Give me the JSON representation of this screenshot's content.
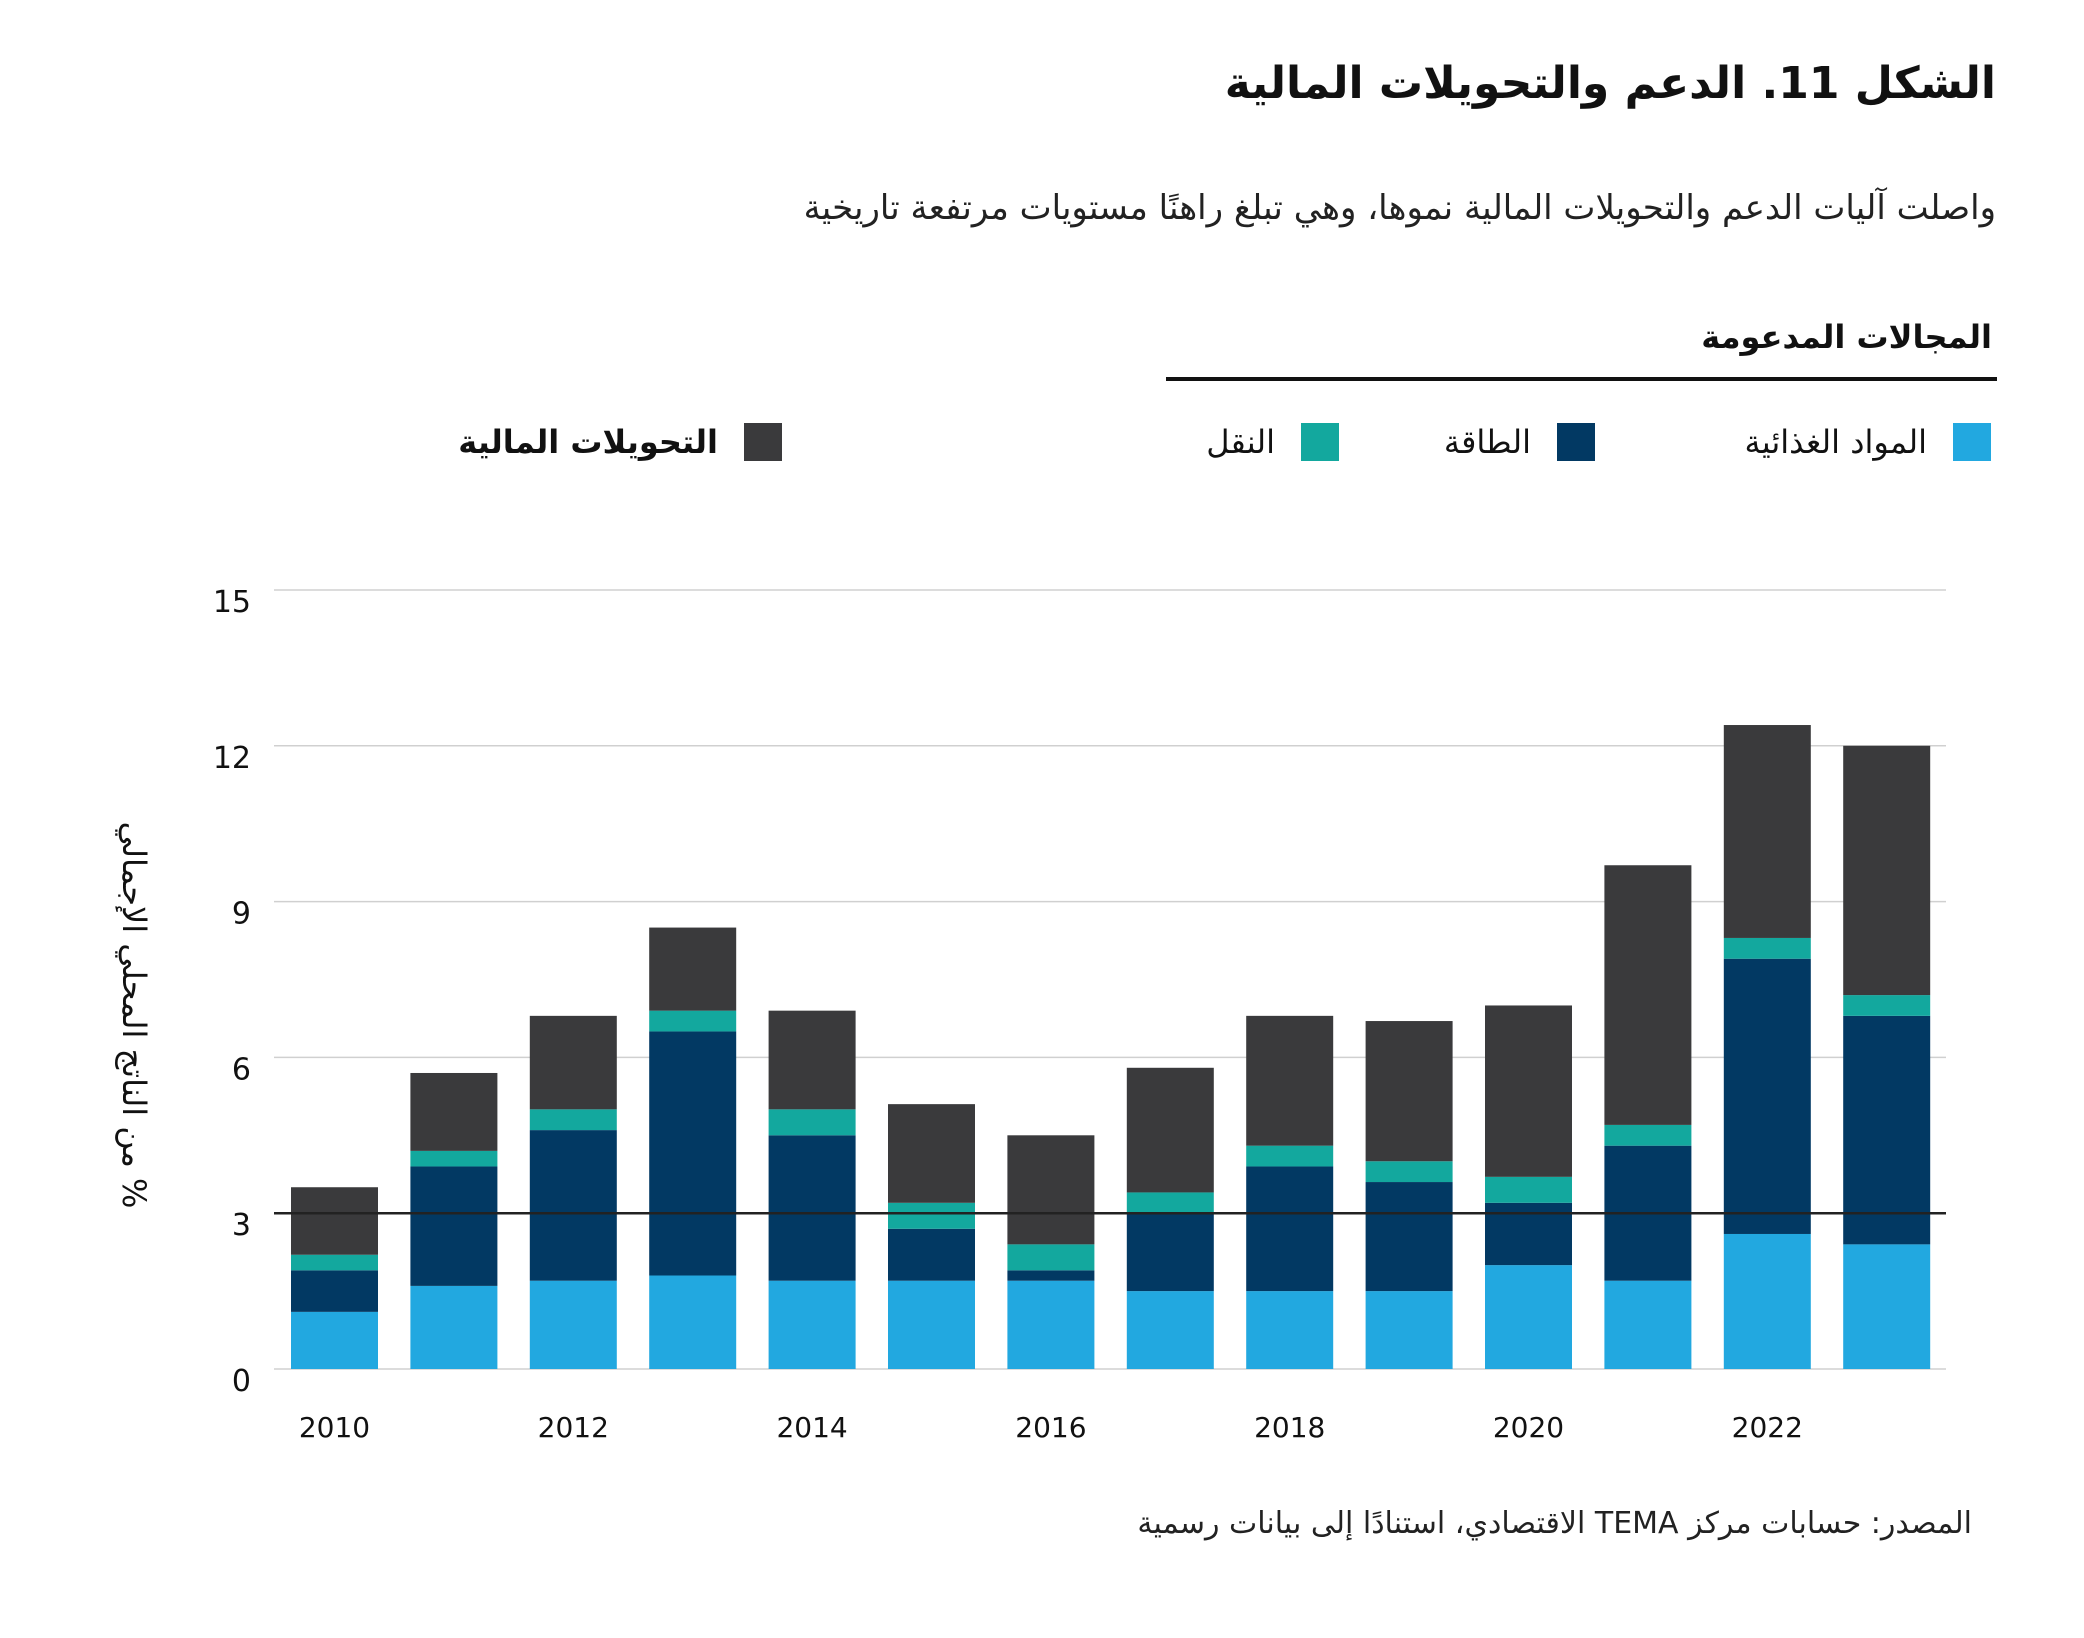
{
  "title": "الشكل 11. الدعم والتحويلات المالية",
  "subtitle": "واصلت آليات الدعم والتحويلات المالية نموها، وهي تبلغ راهنًا مستويات مرتفعة تاريخية",
  "legend": {
    "heading": "المجالات المدعومة",
    "items": [
      {
        "label": "المواد الغذائية",
        "color": "#22a8e0"
      },
      {
        "label": "الطاقة",
        "color": "#023963"
      },
      {
        "label": "النقل",
        "color": "#13a89e"
      },
      {
        "label": "التحويلات المالية",
        "color": "#3a3a3c"
      }
    ]
  },
  "source": "المصدر: حسابات مركز TEMA الاقتصادي، استنادًا إلى بيانات رسمية",
  "chart_data": {
    "type": "bar",
    "stacked": true,
    "ylabel": "% من الناتج المحلي الإجمالي",
    "ylim": [
      0,
      15
    ],
    "yticks": [
      "0",
      "3",
      "6",
      "9",
      "12",
      "15"
    ],
    "reference_line": 3,
    "grid": true,
    "legend_position": "top",
    "categories": [
      2010,
      2011,
      2012,
      2013,
      2014,
      2015,
      2016,
      2017,
      2018,
      2019,
      2020,
      2021,
      2022,
      2023
    ],
    "xtick_labels": [
      "2010",
      "",
      "2012",
      "",
      "2014",
      "",
      "2016",
      "",
      "2018",
      "",
      "2020",
      "",
      "2022",
      ""
    ],
    "series": [
      {
        "name": "المواد الغذائية",
        "color": "#22a8e0",
        "values": [
          1.1,
          1.6,
          1.7,
          1.8,
          1.7,
          1.7,
          1.7,
          1.5,
          1.5,
          1.5,
          2.0,
          1.7,
          2.6,
          2.4
        ]
      },
      {
        "name": "الطاقة",
        "color": "#023963",
        "values": [
          0.8,
          2.3,
          2.9,
          4.7,
          2.8,
          1.0,
          0.2,
          1.5,
          2.4,
          2.1,
          1.2,
          2.6,
          5.3,
          4.4
        ]
      },
      {
        "name": "النقل",
        "color": "#13a89e",
        "values": [
          0.3,
          0.3,
          0.4,
          0.4,
          0.5,
          0.5,
          0.5,
          0.4,
          0.4,
          0.4,
          0.5,
          0.4,
          0.4,
          0.4
        ]
      },
      {
        "name": "التحويلات المالية",
        "color": "#3a3a3c",
        "values": [
          1.3,
          1.5,
          1.8,
          1.6,
          1.9,
          1.9,
          2.1,
          2.4,
          2.5,
          2.7,
          3.3,
          5.0,
          4.1,
          4.8
        ]
      }
    ]
  }
}
